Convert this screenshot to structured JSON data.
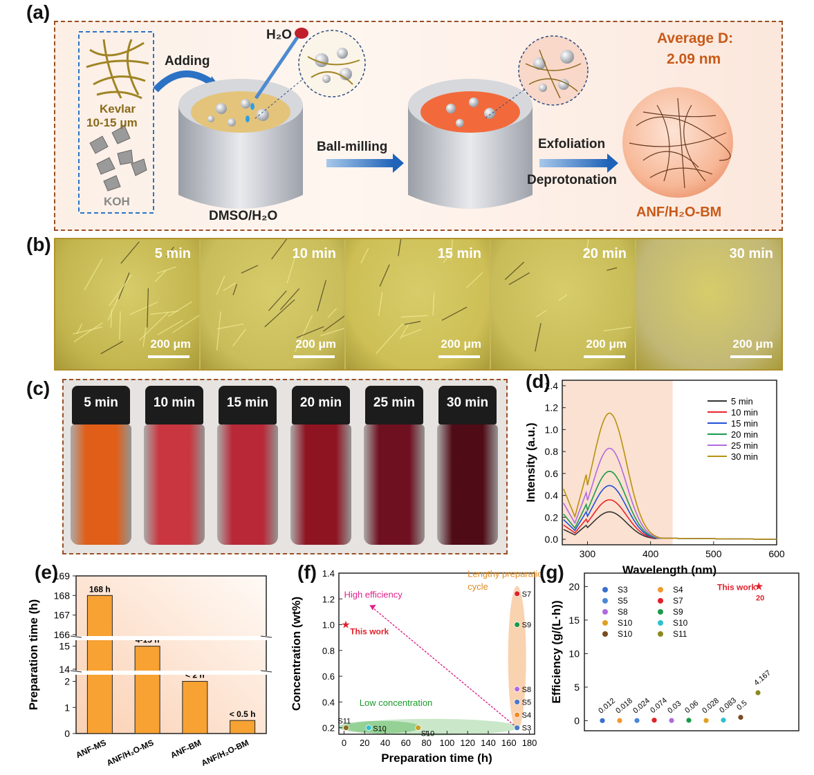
{
  "panel_labels": {
    "a": "(a)",
    "b": "(b)",
    "c": "(c)",
    "d": "(d)",
    "e": "(e)",
    "f": "(f)",
    "g": "(g)"
  },
  "schematic": {
    "kevlar": "Kevlar",
    "kevlar_size": "10-15 μm",
    "koh": "KOH",
    "adding": "Adding",
    "water": "H₂O",
    "solvent": "DMSO/H₂O",
    "step1": "Ball-milling",
    "step2a": "Exfoliation",
    "step2b": "Deprotonation",
    "avg_label": "Average D:",
    "avg_value": "2.09 nm",
    "product": "ANF/H₂O-BM"
  },
  "micrographs": [
    {
      "time": "5 min",
      "scale": "200 μm",
      "color": "#c3b54e"
    },
    {
      "time": "10 min",
      "scale": "200 μm",
      "color": "#c9bd5b"
    },
    {
      "time": "15 min",
      "scale": "200 μm",
      "color": "#cdbf55"
    },
    {
      "time": "20 min",
      "scale": "200 μm",
      "color": "#c7bc58"
    },
    {
      "time": "30 min",
      "scale": "200 μm",
      "color": "#c2b876"
    }
  ],
  "vials": [
    {
      "time": "5 min",
      "color": "#e05e17"
    },
    {
      "time": "10 min",
      "color": "#c9363f"
    },
    {
      "time": "15 min",
      "color": "#b82837"
    },
    {
      "time": "20 min",
      "color": "#8e1422"
    },
    {
      "time": "25 min",
      "color": "#6e1020"
    },
    {
      "time": "30 min",
      "color": "#4f0b16"
    }
  ],
  "chart_data": [
    {
      "id": "d",
      "type": "line",
      "xlabel": "Wavelength (nm)",
      "ylabel": "Intensity (a.u.)",
      "xlim": [
        260,
        600
      ],
      "ylim": [
        -0.05,
        1.45
      ],
      "xticks": [
        300,
        400,
        500,
        600
      ],
      "yticks": [
        0.0,
        0.2,
        0.4,
        0.6,
        0.8,
        1.0,
        1.2,
        1.4
      ],
      "shaded_region": [
        260,
        435
      ],
      "legend_position": "upper right",
      "series": [
        {
          "name": "5 min",
          "color": "#333333",
          "peak": 0.25,
          "start": 0.09
        },
        {
          "name": "10 min",
          "color": "#e8232a",
          "peak": 0.36,
          "start": 0.13
        },
        {
          "name": "15 min",
          "color": "#1f4fd8",
          "peak": 0.49,
          "start": 0.18
        },
        {
          "name": "20 min",
          "color": "#1a9a4a",
          "peak": 0.62,
          "start": 0.23
        },
        {
          "name": "25 min",
          "color": "#b06ae0",
          "peak": 0.83,
          "start": 0.33
        },
        {
          "name": "30 min",
          "color": "#b8900f",
          "peak": 1.15,
          "start": 0.46
        }
      ]
    },
    {
      "id": "e",
      "type": "bar",
      "ylabel": "Preparation time (h)",
      "categories": [
        "ANF-MS",
        "ANF/H₂O-MS",
        "ANF-BM",
        "ANF/H₂O-BM"
      ],
      "values": [
        168,
        15,
        2,
        0.5
      ],
      "labels": [
        "168 h",
        "4-15 h",
        "< 2 h",
        "< 0.5 h"
      ],
      "axis_breaks": [
        [
          2.2,
          14
        ],
        [
          15.2,
          166
        ]
      ],
      "yticks": [
        0,
        1,
        2,
        14,
        15,
        166,
        167,
        168,
        169
      ],
      "bar_color": "#f7a233"
    },
    {
      "id": "f",
      "type": "scatter",
      "xlabel": "Preparation time (h)",
      "ylabel": "Concentration (wt%)",
      "xlim": [
        -5,
        185
      ],
      "ylim": [
        0.15,
        1.4
      ],
      "xticks": [
        0,
        20,
        40,
        60,
        80,
        100,
        120,
        140,
        160,
        180
      ],
      "yticks": [
        0.2,
        0.4,
        0.6,
        0.8,
        1.0,
        1.2,
        1.4
      ],
      "points": [
        {
          "name": "S3",
          "x": 168,
          "y": 0.2,
          "color": "#4a78c8"
        },
        {
          "name": "S4",
          "x": 168,
          "y": 0.3,
          "color": "#f0882a"
        },
        {
          "name": "S5",
          "x": 168,
          "y": 0.4,
          "color": "#4a78c8"
        },
        {
          "name": "S7",
          "x": 168,
          "y": 1.24,
          "color": "#e0202a"
        },
        {
          "name": "S8",
          "x": 168,
          "y": 0.5,
          "color": "#b06ae0"
        },
        {
          "name": "S9",
          "x": 168,
          "y": 1.0,
          "color": "#1a9a4a"
        },
        {
          "name": "S10",
          "x": 24,
          "y": 0.2,
          "color": "#2ec0d0"
        },
        {
          "name": "S10",
          "x": 72,
          "y": 0.2,
          "color": "#c8a020"
        },
        {
          "name": "S11",
          "x": 2,
          "y": 0.2,
          "color": "#8a6a20"
        },
        {
          "name": "This work",
          "x": 0.5,
          "y": 1.0,
          "color": "#e0202a"
        }
      ],
      "annotations": [
        "High efficiency",
        "Lengthy preparation cycle",
        "Low concentration"
      ]
    },
    {
      "id": "g",
      "type": "scatter",
      "ylabel": "Efficiency (g/(L·h))",
      "ylim": [
        -1.5,
        22
      ],
      "yticks": [
        0,
        5,
        10,
        15,
        20
      ],
      "legend": [
        {
          "name": "S3",
          "color": "#3a6ed0"
        },
        {
          "name": "S4",
          "color": "#f09a30"
        },
        {
          "name": "S5",
          "color": "#4a88d8"
        },
        {
          "name": "S7",
          "color": "#e0202a"
        },
        {
          "name": "S8",
          "color": "#b06ae0"
        },
        {
          "name": "S9",
          "color": "#1a9a4a"
        },
        {
          "name": "S10",
          "color": "#e0a020"
        },
        {
          "name": "S10",
          "color": "#2ec0d0"
        },
        {
          "name": "S10",
          "color": "#7a4a20"
        },
        {
          "name": "S11",
          "color": "#8a8a20"
        }
      ],
      "values": [
        0.012,
        0.018,
        0.024,
        0.074,
        0.03,
        0.06,
        0.028,
        0.083,
        0.5,
        4.167
      ],
      "value_labels": [
        "0.012",
        "0.018",
        "0.024",
        "0.074",
        "0.03",
        "0.06",
        "0.028",
        "0.083",
        "0.5",
        "4.167"
      ],
      "this_work": {
        "label": "This work",
        "value": 20,
        "value_label": "20",
        "color": "#e0202a"
      }
    }
  ]
}
